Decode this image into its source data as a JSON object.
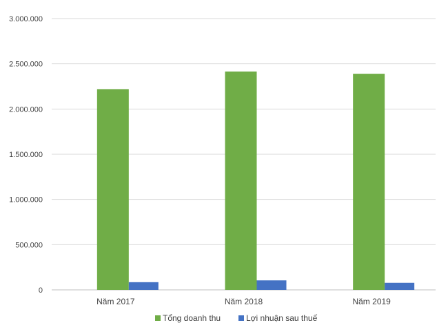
{
  "chart_data": {
    "type": "bar",
    "categories": [
      "Năm 2017",
      "Năm 2018",
      "Năm 2019"
    ],
    "series": [
      {
        "name": "Tổng doanh thu",
        "color": "#70ad47",
        "values": [
          2220000,
          2415000,
          2390000
        ]
      },
      {
        "name": "Lợi nhuận sau thuế",
        "color": "#4472c4",
        "values": [
          85000,
          105000,
          78000
        ]
      }
    ],
    "yticks": [
      "3.000.000",
      "2.500.000",
      "2.000.000",
      "1.500.000",
      "1.000.000",
      "500.000",
      "0"
    ],
    "ylim": [
      0,
      3000000
    ],
    "grid": true,
    "legend_position": "bottom"
  }
}
